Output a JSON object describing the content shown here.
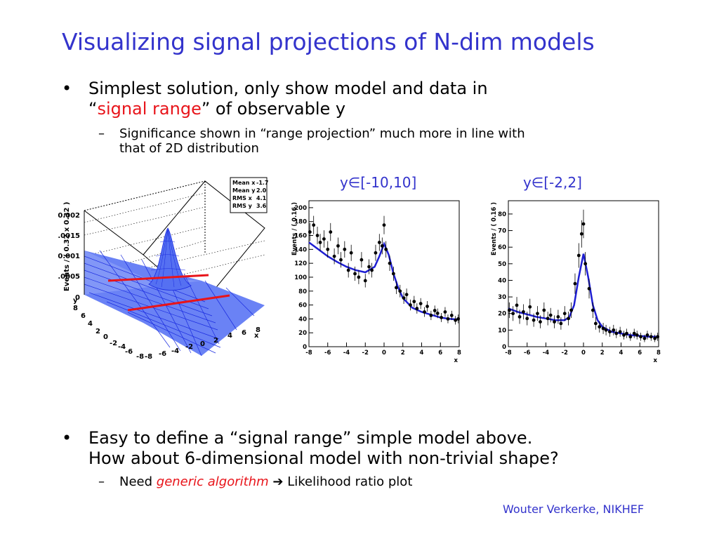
{
  "title": "Visualizing signal projections of N-dim models",
  "bullet1": {
    "line1": "Simplest solution, only show model and data in",
    "line2_open": "“",
    "line2_red": "signal range",
    "line2_rest": "” of observable y",
    "sub": {
      "line1": "Significance shown in “range projection” much more in line with",
      "line2": "that of 2D distribution"
    }
  },
  "range_labels": [
    "y∈[-10,10]",
    "y∈[-2,2]"
  ],
  "bullet2": {
    "line1": "Easy to define a “signal range” simple model above.",
    "line2": "How about 6-dimensional model with non-trivial shape?",
    "sub_prefix": "Need ",
    "sub_red": "generic algorithm",
    "sub_arrow": "➔",
    "sub_suffix": " Likelihood ratio plot"
  },
  "footer": "Wouter Verkerke, NIKHEF",
  "colors": {
    "title": "#3333cc",
    "highlight": "#e8141a",
    "model_curve": "#1e1ed2",
    "surface": "#2233ee"
  },
  "surface_plot": {
    "stats": [
      [
        "Mean x",
        "-1.7"
      ],
      [
        "Mean y",
        "2.0"
      ],
      [
        "RMS x",
        "4.1"
      ],
      [
        "RMS y",
        "3.6"
      ]
    ],
    "z_axis_label": "Events / ( 0.32 x 0.32 )",
    "z_ticks": [
      "0.002",
      "0.0015",
      "0.001",
      "0.0005",
      "0"
    ],
    "y_ticks": [
      "8",
      "6",
      "4",
      "2",
      "0",
      "-2",
      "-4",
      "-6",
      "-8"
    ],
    "x_ticks": [
      "-8",
      "-6",
      "-4",
      "-2",
      "0",
      "2",
      "4",
      "6",
      "8"
    ],
    "x_axis_label": "x",
    "y_axis_label": "y"
  },
  "chart_data": [
    {
      "type": "scatter",
      "title": "",
      "ylabel": "Events / ( 0.16 )",
      "xlabel": "x",
      "xlim": [
        -8,
        8
      ],
      "ylim": [
        0,
        210
      ],
      "x_ticks": [
        -8,
        -6,
        -4,
        -2,
        0,
        2,
        4,
        6,
        8
      ],
      "y_ticks": [
        0,
        20,
        40,
        60,
        80,
        100,
        120,
        140,
        160,
        180,
        200
      ],
      "series": [
        {
          "x": [
            -7.9,
            -7.5,
            -7.1,
            -6.8,
            -6.4,
            -6.0,
            -5.7,
            -5.3,
            -4.9,
            -4.6,
            -4.2,
            -3.8,
            -3.5,
            -3.1,
            -2.7,
            -2.4,
            -2.0,
            -1.6,
            -1.3,
            -0.9,
            -0.5,
            -0.2,
            0.0,
            0.2,
            0.6,
            1.0,
            1.3,
            1.7,
            2.1,
            2.4,
            2.8,
            3.2,
            3.5,
            3.9,
            4.3,
            4.6,
            5.0,
            5.4,
            5.7,
            6.1,
            6.5,
            6.8,
            7.2,
            7.6,
            7.9
          ],
          "y": [
            165,
            175,
            160,
            150,
            155,
            140,
            165,
            130,
            145,
            125,
            140,
            110,
            135,
            105,
            100,
            125,
            95,
            115,
            110,
            135,
            150,
            145,
            175,
            140,
            120,
            105,
            85,
            80,
            70,
            75,
            60,
            65,
            55,
            62,
            50,
            58,
            45,
            52,
            48,
            42,
            50,
            40,
            45,
            38,
            40
          ]
        },
        {
          "x": [
            -8,
            -7,
            -6,
            -5,
            -4,
            -3,
            -2,
            -1,
            -0.5,
            0,
            0.5,
            1,
            1.5,
            2,
            3,
            4,
            5,
            6,
            7,
            8
          ],
          "y": [
            150,
            140,
            130,
            122,
            115,
            110,
            107,
            115,
            130,
            148,
            132,
            105,
            85,
            70,
            56,
            50,
            46,
            42,
            40,
            39
          ]
        }
      ]
    },
    {
      "type": "scatter",
      "title": "",
      "ylabel": "Events / ( 0.16 )",
      "xlabel": "x",
      "xlim": [
        -8,
        8
      ],
      "ylim": [
        0,
        88
      ],
      "x_ticks": [
        -8,
        -6,
        -4,
        -2,
        0,
        2,
        4,
        6,
        8
      ],
      "y_ticks": [
        0,
        10,
        20,
        30,
        40,
        50,
        60,
        70,
        80
      ],
      "series": [
        {
          "x": [
            -7.9,
            -7.5,
            -7.1,
            -6.8,
            -6.4,
            -6.0,
            -5.7,
            -5.3,
            -4.9,
            -4.6,
            -4.2,
            -3.8,
            -3.5,
            -3.1,
            -2.7,
            -2.4,
            -2.0,
            -1.6,
            -1.3,
            -0.9,
            -0.5,
            -0.2,
            0.0,
            0.2,
            0.6,
            1.0,
            1.3,
            1.7,
            2.1,
            2.4,
            2.8,
            3.2,
            3.5,
            3.9,
            4.3,
            4.6,
            5.0,
            5.4,
            5.7,
            6.1,
            6.5,
            6.8,
            7.2,
            7.6,
            7.9
          ],
          "y": [
            22,
            20,
            25,
            18,
            21,
            17,
            24,
            16,
            20,
            15,
            22,
            17,
            19,
            15,
            18,
            14,
            20,
            17,
            22,
            38,
            55,
            68,
            74,
            50,
            35,
            22,
            14,
            12,
            11,
            10,
            9,
            10,
            8,
            9,
            7,
            8,
            6,
            8,
            7,
            6,
            5,
            7,
            6,
            5,
            6
          ]
        },
        {
          "x": [
            -8,
            -7,
            -6,
            -5,
            -4,
            -3,
            -2,
            -1.5,
            -1,
            -0.5,
            0,
            0.5,
            1,
            1.5,
            2,
            3,
            4,
            5,
            6,
            7,
            8
          ],
          "y": [
            23,
            21,
            19.5,
            18,
            17,
            16,
            16,
            18,
            25,
            42,
            56,
            42,
            25,
            16,
            12,
            9,
            8,
            7,
            6.5,
            6,
            6
          ]
        }
      ]
    }
  ]
}
